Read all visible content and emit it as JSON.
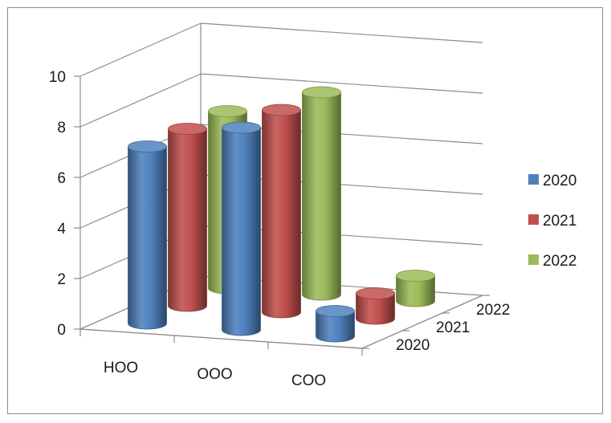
{
  "chart_data": {
    "type": "bar",
    "subtype": "3d-cylinder",
    "title": "",
    "xlabel": "",
    "ylabel": "",
    "ylim": [
      0,
      10
    ],
    "yticks": [
      0,
      2,
      4,
      6,
      8,
      10
    ],
    "categories": [
      "HOO",
      "OOO",
      "COO"
    ],
    "depth_labels": [
      "2020",
      "2021",
      "2022"
    ],
    "grid": true,
    "legend_position": "right",
    "series": [
      {
        "name": "2020",
        "color": "#4f81bd",
        "values": [
          7,
          8,
          1
        ]
      },
      {
        "name": "2021",
        "color": "#c0504d",
        "values": [
          7,
          8,
          1
        ]
      },
      {
        "name": "2022",
        "color": "#9bbb59",
        "values": [
          7,
          8,
          1
        ]
      }
    ]
  }
}
